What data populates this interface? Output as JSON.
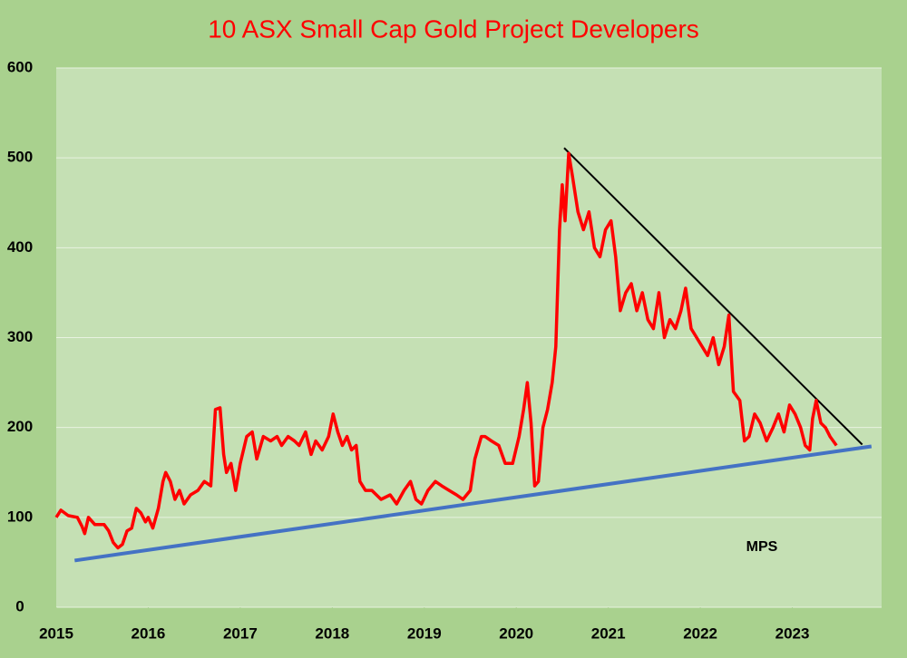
{
  "chart_data": {
    "type": "line",
    "title": "10 ASX Small Cap Gold Project Developers",
    "annotation": "MPS",
    "xlim": [
      2015,
      2024
    ],
    "xticks": [
      2015,
      2016,
      2017,
      2018,
      2019,
      2020,
      2021,
      2022,
      2023
    ],
    "ylim": [
      0,
      600
    ],
    "yticks": [
      0,
      100,
      200,
      300,
      400,
      500,
      600
    ],
    "grid": true,
    "x": [
      2015.0,
      2015.05,
      2015.13,
      2015.23,
      2015.28,
      2015.31,
      2015.35,
      2015.42,
      2015.52,
      2015.57,
      2015.62,
      2015.67,
      2015.72,
      2015.77,
      2015.82,
      2015.87,
      2015.92,
      2015.97,
      2016.0,
      2016.05,
      2016.11,
      2016.16,
      2016.19,
      2016.24,
      2016.29,
      2016.34,
      2016.39,
      2016.46,
      2016.54,
      2016.61,
      2016.68,
      2016.73,
      2016.78,
      2016.82,
      2016.85,
      2016.9,
      2016.95,
      2017.0,
      2017.07,
      2017.13,
      2017.18,
      2017.25,
      2017.33,
      2017.4,
      2017.45,
      2017.52,
      2017.59,
      2017.64,
      2017.71,
      2017.77,
      2017.82,
      2017.89,
      2017.96,
      2018.01,
      2018.06,
      2018.11,
      2018.16,
      2018.21,
      2018.26,
      2018.3,
      2018.36,
      2018.43,
      2018.53,
      2018.63,
      2018.7,
      2018.78,
      2018.85,
      2018.91,
      2018.97,
      2019.04,
      2019.12,
      2019.19,
      2019.27,
      2019.35,
      2019.42,
      2019.5,
      2019.55,
      2019.62,
      2019.66,
      2019.73,
      2019.81,
      2019.88,
      2019.96,
      2020.03,
      2020.08,
      2020.12,
      2020.16,
      2020.2,
      2020.24,
      2020.29,
      2020.34,
      2020.39,
      2020.43,
      2020.47,
      2020.5,
      2020.53,
      2020.57,
      2020.61,
      2020.67,
      2020.73,
      2020.79,
      2020.85,
      2020.91,
      2020.97,
      2021.03,
      2021.08,
      2021.13,
      2021.19,
      2021.25,
      2021.31,
      2021.37,
      2021.43,
      2021.49,
      2021.55,
      2021.61,
      2021.67,
      2021.73,
      2021.79,
      2021.84,
      2021.9,
      2021.96,
      2022.02,
      2022.08,
      2022.14,
      2022.2,
      2022.26,
      2022.31,
      2022.36,
      2022.43,
      2022.48,
      2022.53,
      2022.59,
      2022.65,
      2022.72,
      2022.79,
      2022.85,
      2022.91,
      2022.97,
      2023.03,
      2023.09,
      2023.14,
      2023.19,
      2023.22,
      2023.26,
      2023.31,
      2023.36,
      2023.41,
      2023.48
    ],
    "series": [
      {
        "color": "#ff0000",
        "values": [
          100,
          108,
          102,
          100,
          90,
          82,
          100,
          92,
          92,
          85,
          72,
          66,
          70,
          85,
          88,
          110,
          105,
          95,
          100,
          88,
          110,
          140,
          150,
          140,
          120,
          130,
          115,
          125,
          130,
          140,
          135,
          220,
          222,
          170,
          150,
          160,
          130,
          160,
          190,
          195,
          165,
          190,
          185,
          190,
          180,
          190,
          185,
          180,
          195,
          170,
          185,
          175,
          190,
          215,
          195,
          180,
          190,
          175,
          180,
          140,
          130,
          130,
          120,
          125,
          115,
          130,
          140,
          120,
          115,
          130,
          140,
          135,
          130,
          125,
          120,
          130,
          165,
          190,
          190,
          185,
          180,
          160,
          160,
          190,
          220,
          250,
          205,
          135,
          140,
          200,
          220,
          250,
          290,
          420,
          470,
          430,
          505,
          480,
          440,
          420,
          440,
          400,
          390,
          420,
          430,
          390,
          330,
          350,
          360,
          330,
          350,
          320,
          310,
          350,
          300,
          320,
          310,
          330,
          355,
          310,
          300,
          290,
          280,
          300,
          270,
          290,
          325,
          240,
          230,
          185,
          190,
          215,
          205,
          185,
          200,
          215,
          195,
          225,
          215,
          200,
          180,
          175,
          210,
          230,
          205,
          200,
          190,
          180
        ]
      }
    ],
    "trendlines": [
      {
        "color": "#4472c4",
        "x": [
          2015.2,
          2023.86
        ],
        "y": [
          52,
          179
        ]
      },
      {
        "color": "#000000",
        "x": [
          2020.52,
          2023.76
        ],
        "y": [
          511,
          181
        ]
      }
    ]
  }
}
